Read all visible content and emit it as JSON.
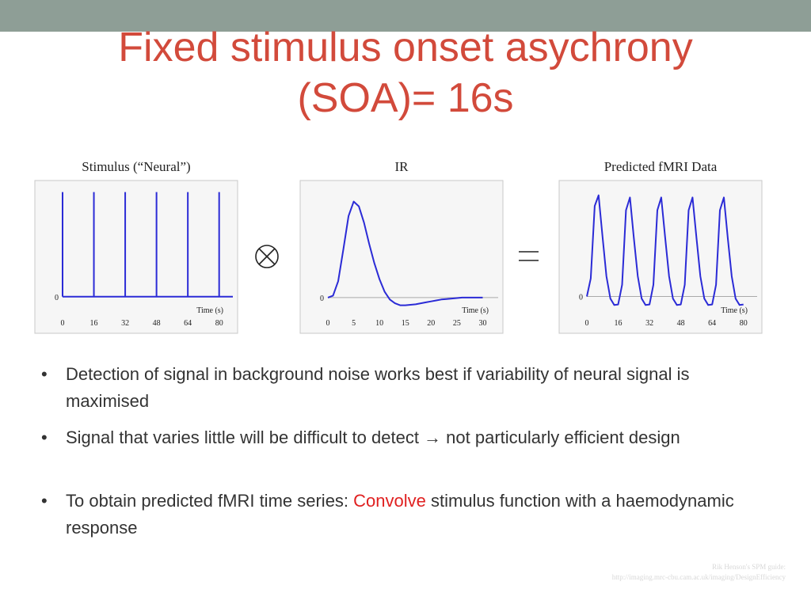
{
  "header": {
    "title": "Fixed stimulus onset asychrony (SOA)= 16s"
  },
  "chart_data": [
    {
      "type": "impulse",
      "title": "Stimulus (“Neural”)",
      "x_label": "Time (s)",
      "color": "#2b2bd6",
      "x": [
        0,
        16,
        32,
        48,
        64,
        80
      ],
      "values": [
        1,
        1,
        1,
        1,
        1,
        1
      ],
      "xlim": [
        0,
        87
      ],
      "ylim": [
        -0.1,
        1.02
      ],
      "xticks": [
        0,
        16,
        32,
        48,
        64,
        80
      ],
      "yticks": [
        0
      ]
    },
    {
      "type": "line",
      "title": "IR",
      "x_label": "Time (s)",
      "color": "#2b2bd6",
      "x": [
        0,
        1,
        2,
        3,
        4,
        5,
        6,
        7,
        8,
        9,
        10,
        11,
        12,
        13,
        14,
        15,
        16,
        17,
        18,
        19,
        20,
        21,
        22,
        23,
        24,
        25,
        26,
        27,
        28,
        29,
        30
      ],
      "values": [
        0,
        0.02,
        0.17,
        0.5,
        0.85,
        1.0,
        0.95,
        0.78,
        0.56,
        0.36,
        0.19,
        0.06,
        -0.02,
        -0.06,
        -0.08,
        -0.08,
        -0.075,
        -0.07,
        -0.06,
        -0.05,
        -0.04,
        -0.03,
        -0.02,
        -0.015,
        -0.01,
        -0.005,
        0,
        0,
        0,
        0,
        0
      ],
      "xlim": [
        0,
        33
      ],
      "ylim": [
        -0.1,
        1.12
      ],
      "xticks": [
        0,
        5,
        10,
        15,
        20,
        25,
        30
      ],
      "yticks": [
        0
      ]
    },
    {
      "type": "line",
      "title": "Predicted fMRI Data",
      "x_label": "Time (s)",
      "color": "#2b2bd6",
      "x": [
        0,
        2,
        4,
        6,
        8,
        10,
        12,
        14,
        16,
        18,
        20,
        22,
        24,
        26,
        28,
        30,
        32,
        34,
        36,
        38,
        40,
        42,
        44,
        46,
        48,
        50,
        52,
        54,
        56,
        58,
        60,
        62,
        64,
        66,
        68,
        70,
        72,
        74,
        76,
        78,
        80
      ],
      "values": [
        0,
        0.17,
        0.85,
        0.95,
        0.56,
        0.19,
        -0.02,
        -0.08,
        -0.075,
        0.11,
        0.81,
        0.93,
        0.55,
        0.19,
        -0.02,
        -0.08,
        -0.075,
        0.11,
        0.81,
        0.93,
        0.55,
        0.19,
        -0.02,
        -0.08,
        -0.075,
        0.11,
        0.81,
        0.93,
        0.55,
        0.19,
        -0.02,
        -0.08,
        -0.075,
        0.11,
        0.81,
        0.93,
        0.55,
        0.19,
        -0.02,
        -0.08,
        -0.075
      ],
      "xlim": [
        0,
        87
      ],
      "ylim": [
        -0.1,
        1.0
      ],
      "xticks": [
        0,
        16,
        32,
        48,
        64,
        80
      ],
      "yticks": [
        0
      ]
    }
  ],
  "bullets": [
    {
      "parts": [
        "Detection of signal in background noise works best if variability of neural signal is maximised"
      ]
    },
    {
      "parts": [
        "Signal that varies little will be difficult to detect → not particularly efficient design"
      ]
    },
    {
      "parts": [
        "To obtain predicted fMRI time series: ",
        "Convolve",
        " stimulus function with a haemodynamic response"
      ]
    }
  ],
  "footer": {
    "line1": "Rik Henson's SPM guide:",
    "line2": "http://imaging.mrc-cbu.cam.ac.uk/imaging/DesignEfficiency"
  }
}
